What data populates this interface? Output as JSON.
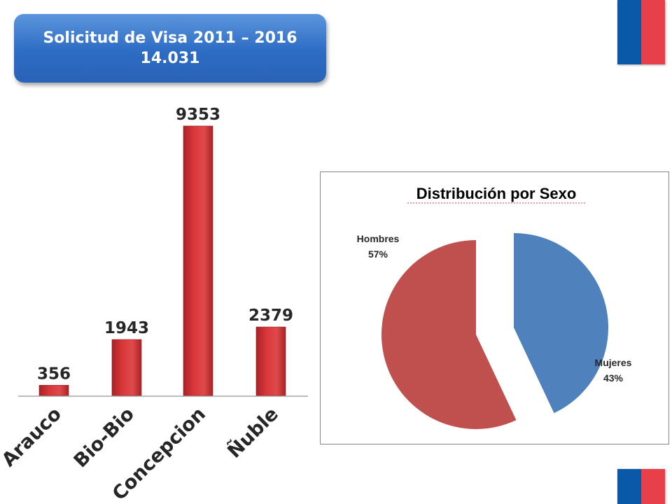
{
  "header": {
    "title_line1": "Solicitud de Visa 2011 – 2016",
    "title_line2": "14.031"
  },
  "colors": {
    "flag_blue": "#0a59a8",
    "flag_red": "#e8404a",
    "bar_red": "#d9373b",
    "pie_blue": "#4f81bd",
    "pie_red": "#c0504d"
  },
  "chart_data": [
    {
      "type": "bar",
      "categories": [
        "Arauco",
        "Bio-Bio",
        "Concepcion",
        "Ñuble"
      ],
      "values": [
        356,
        1943,
        9353,
        2379
      ],
      "data_labels": [
        "356",
        "1943",
        "9353",
        "2379"
      ],
      "title": "",
      "xlabel": "",
      "ylabel": "",
      "ylim": [
        0,
        9353
      ],
      "grid": false
    },
    {
      "type": "pie",
      "title": "Distribución por Sexo",
      "slices": [
        {
          "label": "Mujeres",
          "value": 43,
          "pct_label": "43%"
        },
        {
          "label": "Hombres",
          "value": 57,
          "pct_label": "57%"
        }
      ]
    }
  ]
}
